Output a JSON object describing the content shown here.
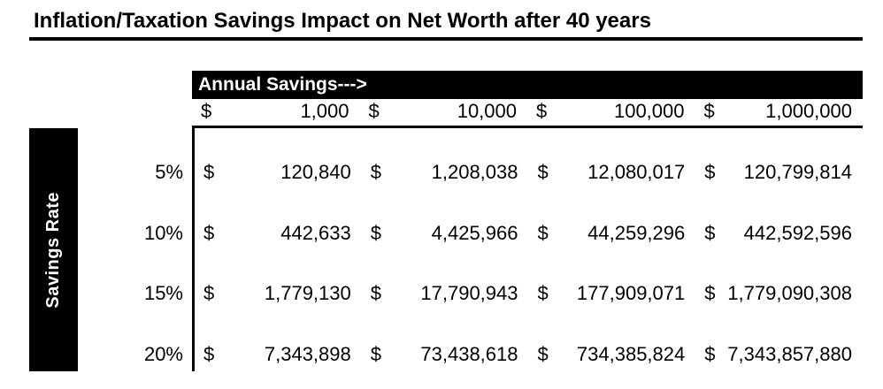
{
  "title": "Inflation/Taxation Savings Impact on Net Worth after 40 years",
  "table": {
    "col_group_label": "Annual Savings--->",
    "row_group_label": "Savings Rate",
    "currency_symbol": "$",
    "col_headers": [
      "1,000",
      "10,000",
      "100,000",
      "1,000,000"
    ],
    "rows": [
      {
        "rate": "5%",
        "values": [
          "120,840",
          "1,208,038",
          "12,080,017",
          "120,799,814"
        ]
      },
      {
        "rate": "10%",
        "values": [
          "442,633",
          "4,425,966",
          "44,259,296",
          "442,592,596"
        ]
      },
      {
        "rate": "15%",
        "values": [
          "1,779,130",
          "17,790,943",
          "177,909,071",
          "1,779,090,308"
        ]
      },
      {
        "rate": "20%",
        "values": [
          "7,343,898",
          "73,438,618",
          "734,385,824",
          "7,343,857,880"
        ]
      }
    ]
  },
  "colors": {
    "accent": "#000000",
    "background": "#ffffff",
    "header_text": "#ffffff"
  },
  "chart_data": {
    "type": "table",
    "title": "Inflation/Taxation Savings Impact on Net Worth after 40 years",
    "column_axis_label": "Annual Savings",
    "row_axis_label": "Savings Rate",
    "columns_annual_savings_usd": [
      1000,
      10000,
      100000,
      1000000
    ],
    "rows_savings_rate": [
      "5%",
      "10%",
      "15%",
      "20%"
    ],
    "values_usd": [
      [
        120840,
        1208038,
        12080017,
        120799814
      ],
      [
        442633,
        4425966,
        44259296,
        442592596
      ],
      [
        1779130,
        17790943,
        177909071,
        1779090308
      ],
      [
        7343898,
        73438618,
        734385824,
        7343857880
      ]
    ]
  }
}
